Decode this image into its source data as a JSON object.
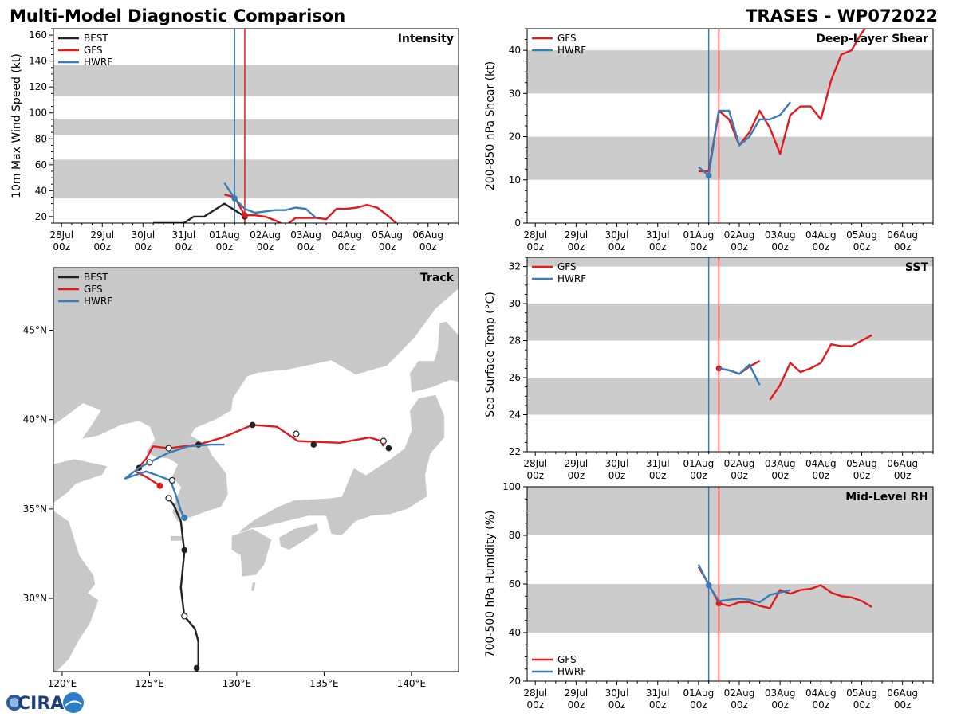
{
  "page": {
    "title_left": "Multi-Model Diagnostic Comparison",
    "title_right": "TRASES - WP072022"
  },
  "logo": {
    "text": "CIRA"
  },
  "colors": {
    "best": "#222222",
    "gfs": "#e31a1c",
    "hwrf": "#377eb8",
    "band": "#cccccc",
    "land": "#c8c8c8",
    "water": "#ffffff"
  },
  "time_axis": {
    "labels": [
      "28Jul",
      "29Jul",
      "30Jul",
      "31Jul",
      "01Aug",
      "02Aug",
      "03Aug",
      "04Aug",
      "05Aug",
      "06Aug"
    ],
    "sublabel": "00z",
    "range_days": [
      -0.2,
      9.75
    ],
    "gfs_init_day": 4.5,
    "hwrf_init_day": 4.25
  },
  "chart_data": [
    {
      "id": "intensity",
      "type": "line",
      "title": "Intensity",
      "ylabel": "10m Max Wind Speed (kt)",
      "ylim": [
        15,
        165
      ],
      "yticks": [
        20,
        40,
        60,
        80,
        100,
        120,
        140,
        160
      ],
      "bands": [
        [
          34,
          64
        ],
        [
          83,
          95
        ],
        [
          113,
          137
        ]
      ],
      "legend": [
        "BEST",
        "GFS",
        "HWRF"
      ],
      "series": [
        {
          "name": "BEST",
          "color": "#222222",
          "x": [
            2.25,
            3.0,
            3.25,
            3.5,
            4.0,
            4.25,
            4.5
          ],
          "y": [
            15,
            15,
            20,
            20,
            30,
            25,
            20
          ],
          "marker": [
            4.5,
            20
          ]
        },
        {
          "name": "GFS",
          "color": "#e31a1c",
          "x": [
            4.0,
            4.25,
            4.5,
            4.75,
            5.0,
            5.25,
            5.5,
            5.75,
            6.0,
            6.25,
            6.5,
            6.75,
            7.0,
            7.25,
            7.5,
            7.75,
            8.0,
            8.25
          ],
          "y": [
            37,
            35,
            21,
            21,
            20,
            17,
            13,
            19,
            19,
            19,
            18,
            26,
            26,
            27,
            29,
            27,
            21,
            14
          ],
          "marker": [
            4.5,
            21
          ]
        },
        {
          "name": "HWRF",
          "color": "#377eb8",
          "x": [
            4.0,
            4.25,
            4.5,
            4.75,
            5.0,
            5.25,
            5.5,
            5.75,
            6.0,
            6.25
          ],
          "y": [
            46,
            34,
            26,
            23,
            24,
            25,
            25,
            27,
            26,
            19
          ],
          "marker": [
            4.25,
            34
          ]
        }
      ]
    },
    {
      "id": "shear",
      "type": "line",
      "title": "Deep-Layer Shear",
      "ylabel": "200-850 hPa Shear (kt)",
      "ylim": [
        0,
        45
      ],
      "yticks": [
        0,
        10,
        20,
        30,
        40
      ],
      "bands": [
        [
          10,
          20
        ],
        [
          30,
          40
        ]
      ],
      "legend": [
        "GFS",
        "HWRF"
      ],
      "series": [
        {
          "name": "GFS",
          "color": "#e31a1c",
          "x": [
            4.0,
            4.25,
            4.5,
            4.75,
            5.0,
            5.25,
            5.5,
            5.75,
            6.0,
            6.25,
            6.5,
            6.75,
            7.0,
            7.25,
            7.5,
            7.75,
            8.0,
            8.25
          ],
          "y": [
            12,
            12,
            26,
            24,
            18,
            21,
            26,
            22,
            16,
            25,
            27,
            27,
            24,
            33,
            39,
            40,
            44,
            47
          ]
        },
        {
          "name": "HWRF",
          "color": "#377eb8",
          "x": [
            4.0,
            4.25,
            4.5,
            4.75,
            5.0,
            5.25,
            5.5,
            5.75,
            6.0,
            6.25
          ],
          "y": [
            13,
            11,
            26,
            26,
            18,
            20,
            24,
            24,
            25,
            28
          ],
          "marker": [
            4.25,
            11
          ]
        }
      ]
    },
    {
      "id": "sst",
      "type": "line",
      "title": "SST",
      "ylabel": "Sea Surface Temp (°C)",
      "ylim": [
        22,
        32.5
      ],
      "yticks": [
        22,
        24,
        26,
        28,
        30,
        32
      ],
      "bands": [
        [
          24,
          26
        ],
        [
          28,
          30
        ],
        [
          32,
          33
        ]
      ],
      "legend": [
        "GFS",
        "HWRF"
      ],
      "series": [
        {
          "name": "GFS",
          "color": "#e31a1c",
          "x": [
            4.5,
            4.75,
            5.0,
            5.25,
            5.5
          ],
          "y": [
            26.5,
            26.4,
            26.2,
            26.6,
            26.9
          ],
          "marker": [
            4.5,
            26.5
          ]
        },
        {
          "name": "GFS-2",
          "color": "#e31a1c",
          "x": [
            5.75,
            6.0,
            6.25,
            6.5,
            6.75,
            7.0,
            7.25,
            7.5,
            7.75,
            8.0,
            8.25
          ],
          "y": [
            24.8,
            25.6,
            26.8,
            26.3,
            26.5,
            26.8,
            27.8,
            27.7,
            27.7,
            28.0,
            28.3
          ]
        },
        {
          "name": "HWRF",
          "color": "#377eb8",
          "x": [
            4.5,
            4.75,
            5.0,
            5.25,
            5.5
          ],
          "y": [
            26.5,
            26.4,
            26.2,
            26.7,
            25.6
          ]
        }
      ]
    },
    {
      "id": "rh",
      "type": "line",
      "title": "Mid-Level RH",
      "ylabel": "700-500 hPa Humidity (%)",
      "ylim": [
        20,
        100
      ],
      "yticks": [
        20,
        40,
        60,
        80,
        100
      ],
      "bands": [
        [
          40,
          60
        ],
        [
          80,
          100
        ]
      ],
      "legend": [
        "GFS",
        "HWRF"
      ],
      "series": [
        {
          "name": "GFS",
          "color": "#e31a1c",
          "x": [
            4.0,
            4.25,
            4.5,
            4.75,
            5.0,
            5.25,
            5.5,
            5.75,
            6.0,
            6.25,
            6.5,
            6.75,
            7.0,
            7.25,
            7.5,
            7.75,
            8.0,
            8.25
          ],
          "y": [
            67,
            60,
            52,
            51,
            52.5,
            52.5,
            51,
            50,
            57.5,
            56,
            57.5,
            58,
            59.5,
            56.5,
            55,
            54.5,
            53,
            50.5
          ],
          "marker": [
            4.5,
            52
          ]
        },
        {
          "name": "HWRF",
          "color": "#377eb8",
          "x": [
            4.0,
            4.25,
            4.5,
            4.75,
            5.0,
            5.25,
            5.5,
            5.75,
            6.0,
            6.25
          ],
          "y": [
            68,
            59.5,
            53,
            53.5,
            54,
            53.5,
            52.5,
            55.5,
            56.5,
            57.5
          ],
          "marker": [
            4.25,
            59.5
          ]
        }
      ]
    },
    {
      "id": "track",
      "type": "line",
      "title": "Track",
      "xlim": [
        119.5,
        142.7
      ],
      "ylim": [
        25.9,
        48.5
      ],
      "xticks": [
        120,
        125,
        130,
        135,
        140
      ],
      "xticklabels": [
        "120°E",
        "125°E",
        "130°E",
        "135°E",
        "140°E"
      ],
      "yticks": [
        30,
        35,
        40,
        45
      ],
      "yticklabels": [
        "30°N",
        "35°N",
        "40°N",
        "45°N"
      ],
      "legend": [
        "BEST",
        "GFS",
        "HWRF"
      ],
      "series": [
        {
          "name": "BEST",
          "color": "#222222",
          "lon": [
            127.7,
            127.8,
            127.8,
            127.6,
            127.0,
            126.8,
            127.0,
            126.8,
            126.4,
            126.1
          ],
          "lat": [
            25.9,
            26.3,
            27.6,
            28.3,
            29.0,
            30.6,
            32.6,
            34.3,
            35.2,
            35.6
          ],
          "markers": [
            [
              127.7,
              26.1,
              "filled"
            ],
            [
              127.0,
              29.0,
              "open"
            ],
            [
              127.0,
              32.7,
              "filled"
            ],
            [
              126.1,
              35.6,
              "open"
            ]
          ]
        },
        {
          "name": "GFS",
          "color": "#e31a1c",
          "lon": [
            125.6,
            124.8,
            124.2,
            124.8,
            125.2,
            126.1,
            127.8,
            129.2,
            130.9,
            132.3,
            133.5,
            135.9,
            137.6,
            138.3,
            138.4
          ],
          "lat": [
            36.3,
            36.8,
            37.1,
            37.8,
            38.5,
            38.4,
            38.6,
            39.0,
            39.7,
            39.6,
            38.8,
            38.7,
            39.0,
            38.8,
            38.5
          ],
          "markers": [
            [
              125.6,
              36.3,
              "gfs"
            ],
            [
              124.4,
              37.3,
              "filled"
            ],
            [
              126.1,
              38.4,
              "open"
            ],
            [
              127.8,
              38.6,
              "filled"
            ],
            [
              130.9,
              39.7,
              "filled"
            ],
            [
              133.4,
              39.2,
              "open"
            ],
            [
              134.4,
              38.6,
              "filled"
            ],
            [
              138.4,
              38.8,
              "open"
            ],
            [
              138.7,
              38.4,
              "filled"
            ]
          ]
        },
        {
          "name": "HWRF",
          "color": "#377eb8",
          "lon": [
            127.0,
            126.8,
            126.5,
            126.2,
            125.4,
            124.8,
            123.6,
            124.4,
            125.0,
            126.0,
            127.2,
            128.5,
            129.3
          ],
          "lat": [
            34.5,
            34.9,
            35.8,
            36.6,
            36.9,
            37.1,
            36.7,
            37.3,
            37.6,
            38.1,
            38.5,
            38.6,
            38.6
          ],
          "markers": [
            [
              127.0,
              34.5,
              "hwrf"
            ],
            [
              126.3,
              36.6,
              "open"
            ],
            [
              125.0,
              37.6,
              "open"
            ]
          ]
        }
      ]
    }
  ]
}
